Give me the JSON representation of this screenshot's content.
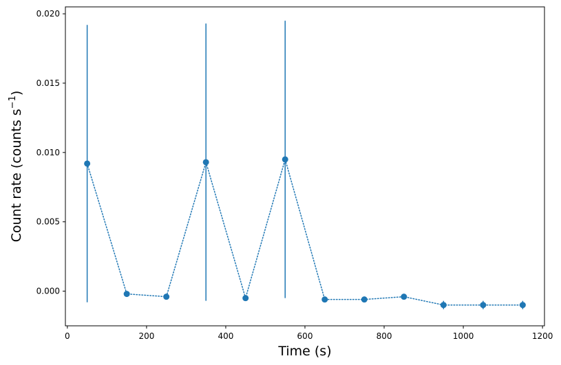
{
  "chart_data": {
    "type": "scatter",
    "title": "",
    "xlabel": "Time (s)",
    "ylabel": {
      "main": "Count rate (counts s",
      "superscript": "−1",
      "close": ")"
    },
    "xlim": [
      -5,
      1205
    ],
    "ylim": [
      -0.0025,
      0.0205
    ],
    "xticks": [
      0,
      200,
      400,
      600,
      800,
      1000,
      1200
    ],
    "xtick_labels": [
      "0",
      "200",
      "400",
      "600",
      "800",
      "1000",
      "1200"
    ],
    "yticks": [
      0.0,
      0.005,
      0.01,
      0.015,
      0.02
    ],
    "ytick_labels": [
      "0.000",
      "0.005",
      "0.010",
      "0.015",
      "0.020"
    ],
    "grid": false,
    "line_style": "dotted",
    "color": "#1f77b4",
    "series": [
      {
        "x": [
          50,
          150,
          250,
          350,
          450,
          550,
          650,
          750,
          850,
          950,
          1050,
          1150
        ],
        "y": [
          0.0092,
          -0.0002,
          -0.0004,
          0.0093,
          -0.0005,
          0.0095,
          -0.0006,
          -0.0006,
          -0.0004,
          -0.001,
          -0.001,
          -0.001
        ],
        "yerr": [
          0.01,
          0.0001,
          0.0001,
          0.01,
          0.0001,
          0.01,
          0.0001,
          0.0001,
          0.0001,
          0.0003,
          0.0003,
          0.0003
        ]
      }
    ]
  }
}
